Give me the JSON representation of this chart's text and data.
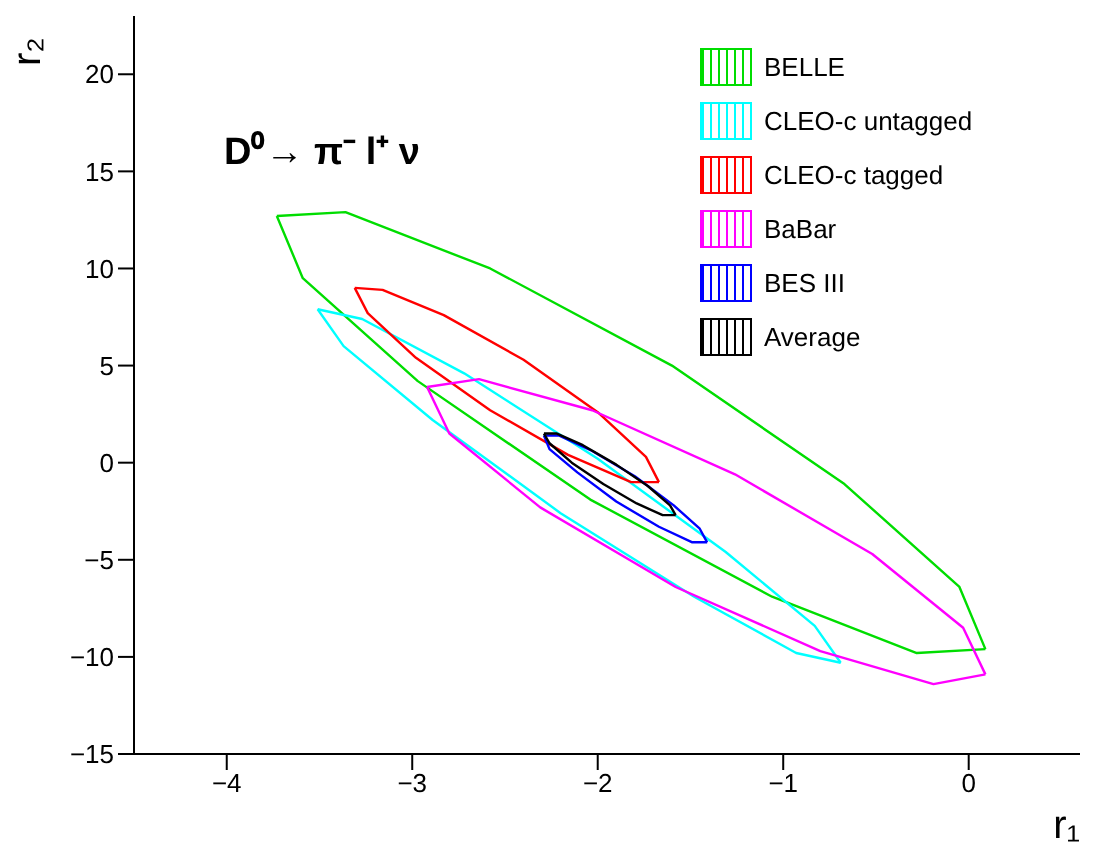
{
  "chart_data": {
    "type": "line",
    "title": "D⁰→ π⁻ l⁺ ν",
    "xlabel": "r₁",
    "ylabel": "r₂",
    "xlim": [
      -4.5,
      0.6
    ],
    "xticks": [
      -4,
      -3,
      -2,
      -1,
      0
    ],
    "ylim": [
      -15,
      23
    ],
    "yticks": [
      -15,
      -10,
      -5,
      0,
      5,
      10,
      15,
      20
    ],
    "grid": false,
    "legend": "top right",
    "marker": "none",
    "line_style": "solid",
    "series": [
      {
        "name": "BELLE",
        "color": "#00dd00",
        "x": [
          -3.73,
          -3.36,
          -2.58,
          -1.6,
          -0.67,
          -0.05,
          0.09
        ],
        "values": [
          12.7,
          12.9,
          10,
          5,
          -1.1,
          -6.4,
          -9.6
        ]
      },
      {
        "color": "#00dd00",
        "x": [
          -3.73,
          -3.59,
          -2.97,
          -2.04,
          -1.06,
          -0.28,
          0.09
        ],
        "values": [
          12.7,
          9.5,
          4.2,
          -1.9,
          -6.9,
          -9.8,
          -9.6
        ]
      },
      {
        "name": "CLEO-c untagged",
        "color": "#00ffff",
        "x": [
          -3.51,
          -3.27,
          -2.72,
          -2,
          -1.31,
          -0.83,
          -0.69
        ],
        "values": [
          7.9,
          7.4,
          4.6,
          0.2,
          -4.6,
          -8.4,
          -10.3
        ]
      },
      {
        "color": "#00ffff",
        "x": [
          -3.51,
          -3.37,
          -2.89,
          -2.2,
          -1.48,
          -0.93,
          -0.69
        ],
        "values": [
          7.9,
          6,
          2.2,
          -2.6,
          -6.9,
          -9.8,
          -10.3
        ]
      },
      {
        "name": "CLEO-c tagged",
        "color": "#ff0000",
        "x": [
          -3.31,
          -3.16,
          -2.83,
          -2.4,
          -2,
          -1.74,
          -1.67
        ],
        "values": [
          9,
          8.9,
          7.6,
          5.3,
          2.6,
          0.3,
          -1
        ]
      },
      {
        "color": "#ff0000",
        "x": [
          -3.31,
          -3.24,
          -2.98,
          -2.58,
          -2.16,
          -1.82,
          -1.67
        ],
        "values": [
          9,
          7.7,
          5.4,
          2.7,
          0.4,
          -1,
          -1
        ]
      },
      {
        "name": "BaBar",
        "color": "#ff00ff",
        "x": [
          -2.92,
          -2.64,
          -2.03,
          -1.26,
          -0.52,
          -0.03,
          0.09
        ],
        "values": [
          3.9,
          4.3,
          2.7,
          -0.6,
          -4.7,
          -8.5,
          -10.9
        ]
      },
      {
        "color": "#ff00ff",
        "x": [
          -2.92,
          -2.8,
          -2.31,
          -1.58,
          -0.8,
          -0.19,
          0.09
        ],
        "values": [
          3.9,
          1.5,
          -2.3,
          -6.4,
          -9.7,
          -11.4,
          -10.9
        ]
      },
      {
        "name": "BES III",
        "color": "#0000ff",
        "x": [
          -2.29,
          -2.21,
          -2.03,
          -1.8,
          -1.59,
          -1.45,
          -1.41
        ],
        "values": [
          1.4,
          1.4,
          0.6,
          -0.7,
          -2.2,
          -3.4,
          -4.1
        ]
      },
      {
        "color": "#0000ff",
        "x": [
          -2.29,
          -2.26,
          -2.11,
          -1.9,
          -1.67,
          -1.49,
          -1.41
        ],
        "values": [
          1.4,
          0.7,
          -0.5,
          -2,
          -3.3,
          -4.1,
          -4.1
        ]
      },
      {
        "name": "Average",
        "color": "#000000",
        "x": [
          -2.29,
          -2.22,
          -2.08,
          -1.9,
          -1.73,
          -1.61,
          -1.58
        ],
        "values": [
          1.5,
          1.5,
          0.9,
          -0.1,
          -1.2,
          -2.2,
          -2.7
        ]
      },
      {
        "color": "#000000",
        "x": [
          -2.29,
          -2.26,
          -2.14,
          -1.97,
          -1.79,
          -1.65,
          -1.58
        ],
        "values": [
          1.5,
          1,
          0,
          -1.1,
          -2.1,
          -2.7,
          -2.7
        ]
      }
    ]
  }
}
